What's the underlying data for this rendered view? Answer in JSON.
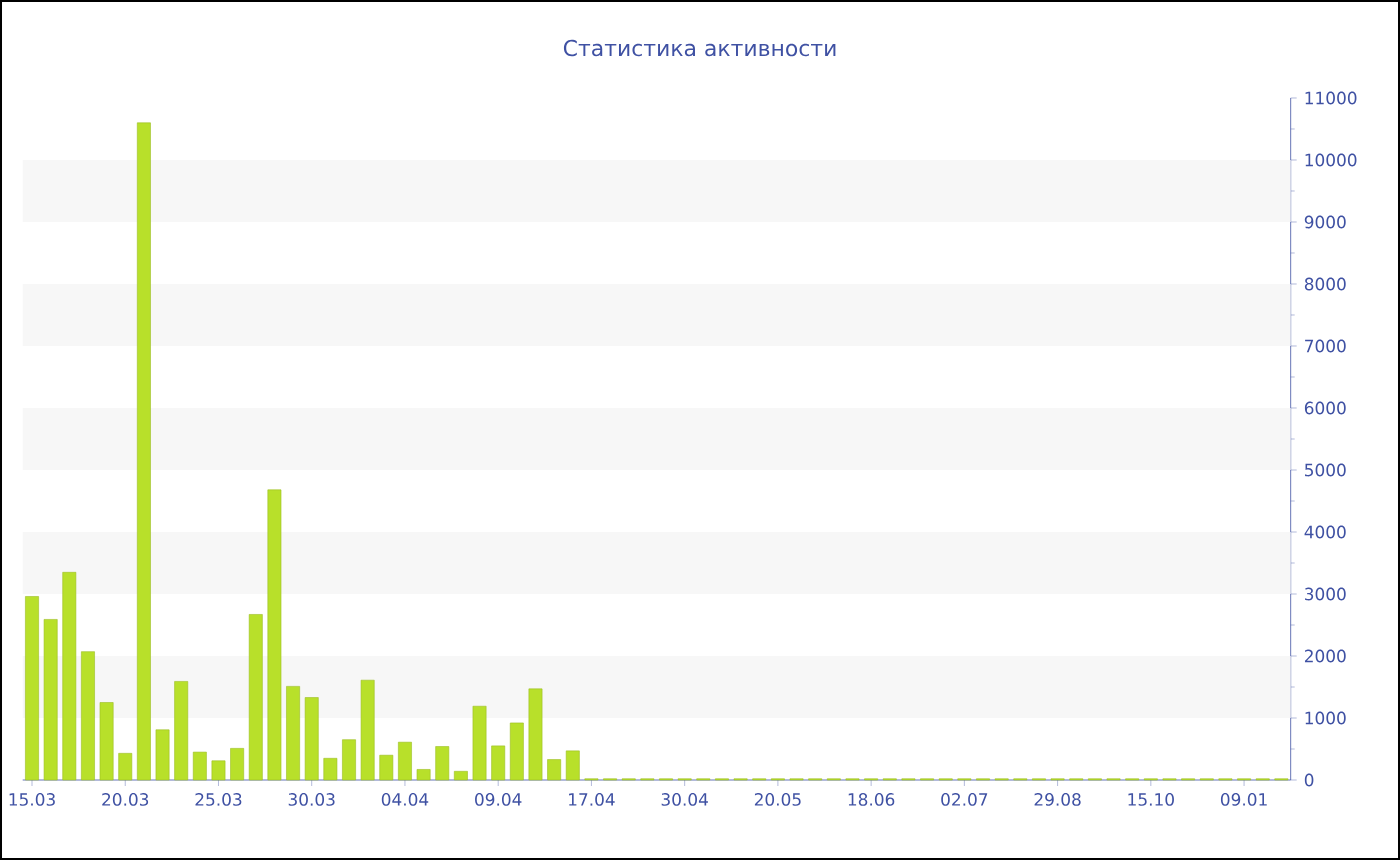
{
  "chart_data": {
    "type": "bar",
    "title": "Статистика активности",
    "categories": [
      "15.03",
      null,
      null,
      null,
      null,
      "20.03",
      null,
      null,
      null,
      null,
      "25.03",
      null,
      null,
      null,
      null,
      "30.03",
      null,
      null,
      null,
      null,
      "04.04",
      null,
      null,
      null,
      null,
      "09.04",
      null,
      null,
      null,
      null,
      "17.04",
      null,
      null,
      null,
      null,
      "30.04",
      null,
      null,
      null,
      null,
      "20.05",
      null,
      null,
      null,
      null,
      "18.06",
      null,
      null,
      null,
      null,
      "02.07",
      null,
      null,
      null,
      null,
      "29.08",
      null,
      null,
      null,
      null,
      "15.10",
      null,
      null,
      null,
      null,
      "09.01",
      null,
      null
    ],
    "values": [
      2960,
      2590,
      3350,
      2070,
      1250,
      430,
      10600,
      810,
      1590,
      450,
      310,
      510,
      2670,
      4680,
      1510,
      1330,
      350,
      650,
      1610,
      400,
      610,
      170,
      540,
      140,
      1190,
      550,
      920,
      1470,
      330,
      470,
      20,
      20,
      20,
      20,
      20,
      20,
      20,
      20,
      20,
      20,
      20,
      20,
      20,
      20,
      20,
      20,
      20,
      20,
      20,
      20,
      20,
      20,
      20,
      20,
      20,
      20,
      20,
      20,
      20,
      20,
      20,
      20,
      20,
      20,
      20,
      20,
      20,
      20
    ],
    "color": "#b8e02a",
    "ylim": [
      0,
      11000
    ],
    "yticks": [
      0,
      1000,
      2000,
      3000,
      4000,
      5000,
      6000,
      7000,
      8000,
      9000,
      10000,
      11000
    ],
    "bands": [
      {
        "axis": "y",
        "from": 1000,
        "to": 2000,
        "color": "#f7f7f7"
      },
      {
        "axis": "y",
        "from": 3000,
        "to": 4000,
        "color": "#f7f7f7"
      },
      {
        "axis": "y",
        "from": 5000,
        "to": 6000,
        "color": "#f7f7f7"
      },
      {
        "axis": "y",
        "from": 7000,
        "to": 8000,
        "color": "#f7f7f7"
      },
      {
        "axis": "y",
        "from": 9000,
        "to": 10000,
        "color": "#f7f7f7"
      }
    ]
  }
}
